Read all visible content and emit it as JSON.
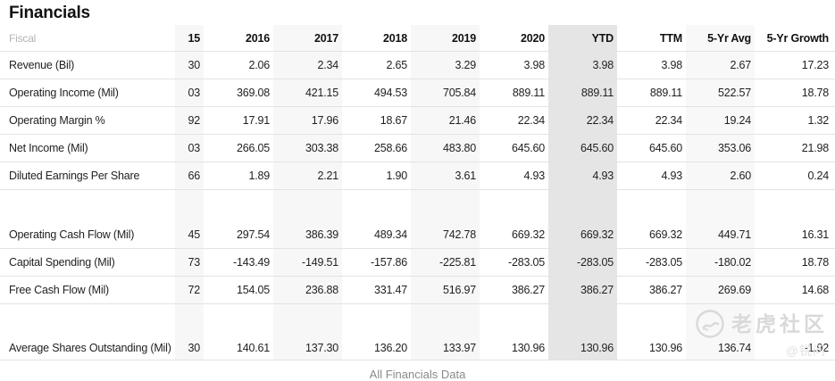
{
  "title": "Financials",
  "footer_link": "All Financials Data",
  "watermark": {
    "brand": "老虎社区",
    "handle": "@锐问"
  },
  "table": {
    "fiscal_label": "Fiscal",
    "columns": [
      "15",
      "2016",
      "2017",
      "2018",
      "2019",
      "2020",
      "YTD",
      "TTM",
      "5-Yr Avg",
      "5-Yr Growth"
    ],
    "highlight_column": "YTD",
    "colors": {
      "ytd_band": "#e5e5e5",
      "stripe_band": "#f7f7f7",
      "row_border": "#e3e3e3",
      "text": "#1f1f1f",
      "muted_text": "#b3b3b3"
    },
    "rows": [
      {
        "label": "Revenue (Bil)",
        "values": [
          "30",
          "2.06",
          "2.34",
          "2.65",
          "3.29",
          "3.98",
          "3.98",
          "3.98",
          "2.67",
          "17.23"
        ]
      },
      {
        "label": "Operating Income (Mil)",
        "values": [
          "03",
          "369.08",
          "421.15",
          "494.53",
          "705.84",
          "889.11",
          "889.11",
          "889.11",
          "522.57",
          "18.78"
        ]
      },
      {
        "label": "Operating Margin %",
        "values": [
          "92",
          "17.91",
          "17.96",
          "18.67",
          "21.46",
          "22.34",
          "22.34",
          "22.34",
          "19.24",
          "1.32"
        ]
      },
      {
        "label": "Net Income (Mil)",
        "values": [
          "03",
          "266.05",
          "303.38",
          "258.66",
          "483.80",
          "645.60",
          "645.60",
          "645.60",
          "353.06",
          "21.98"
        ]
      },
      {
        "label": "Diluted Earnings Per Share",
        "values": [
          "66",
          "1.89",
          "2.21",
          "1.90",
          "3.61",
          "4.93",
          "4.93",
          "4.93",
          "2.60",
          "0.24"
        ]
      },
      {
        "spacer": true
      },
      {
        "label": "Operating Cash Flow (Mil)",
        "values": [
          "45",
          "297.54",
          "386.39",
          "489.34",
          "742.78",
          "669.32",
          "669.32",
          "669.32",
          "449.71",
          "16.31"
        ]
      },
      {
        "label": "Capital Spending (Mil)",
        "values": [
          "73",
          "-143.49",
          "-149.51",
          "-157.86",
          "-225.81",
          "-283.05",
          "-283.05",
          "-283.05",
          "-180.02",
          "18.78"
        ]
      },
      {
        "label": "Free Cash Flow (Mil)",
        "values": [
          "72",
          "154.05",
          "236.88",
          "331.47",
          "516.97",
          "386.27",
          "386.27",
          "386.27",
          "269.69",
          "14.68"
        ]
      },
      {
        "spacer": true
      },
      {
        "label": "Average Shares Outstanding (Mil)",
        "values": [
          "30",
          "140.61",
          "137.30",
          "136.20",
          "133.97",
          "130.96",
          "130.96",
          "130.96",
          "136.74",
          "-1.92"
        ],
        "last": true
      }
    ]
  }
}
